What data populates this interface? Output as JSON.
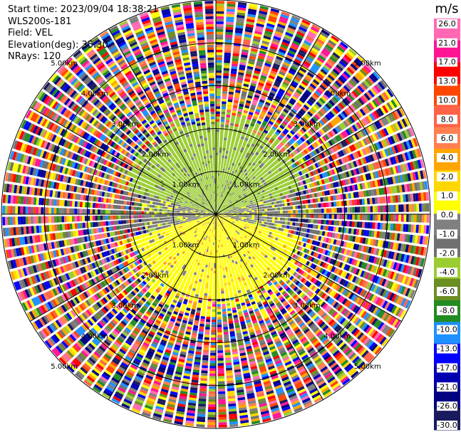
{
  "info": {
    "start_time": "Start time: 2023/09/04 18:38:21",
    "site": "WLS200s-181",
    "field": "Field: VEL",
    "elevation": "Elevation(deg): 35.30",
    "nrays": "NRays: 120"
  },
  "chart_data": {
    "type": "ppi",
    "field": "VEL",
    "units": "m/s",
    "range_rings_km": [
      1.0,
      2.0,
      3.0,
      4.0,
      5.0
    ],
    "range_ring_labels": [
      "1.00km",
      "2.00km",
      "3.00km",
      "4.00km",
      "5.00km"
    ],
    "max_range_km": 5.0,
    "n_rays": 120,
    "colorbar": {
      "title": "m/s",
      "colors": [
        "#1a1a5e",
        "#000080",
        "#0000b0",
        "#0000ff",
        "#1e90ff",
        "#228b22",
        "#6b8e23",
        "#9acd32",
        "#707070",
        "#808080",
        "#ffff00",
        "#ffd700",
        "#ffa500",
        "#ff7f50",
        "#ff6347",
        "#ff4500",
        "#ff0000",
        "#ff1493",
        "#ff69b4"
      ],
      "tick_labels": [
        "-30.0",
        "-26.0",
        "-21.0",
        "-17.0",
        "-13.0",
        "-10.0",
        "-8.0",
        "-6.0",
        "-4.0",
        "-2.0",
        "-1.0",
        "0.0",
        "1.0",
        "2.0",
        "4.0",
        "6.0",
        "8.0",
        "10.0",
        "13.0",
        "17.0",
        "21.0",
        "26.0"
      ]
    }
  }
}
